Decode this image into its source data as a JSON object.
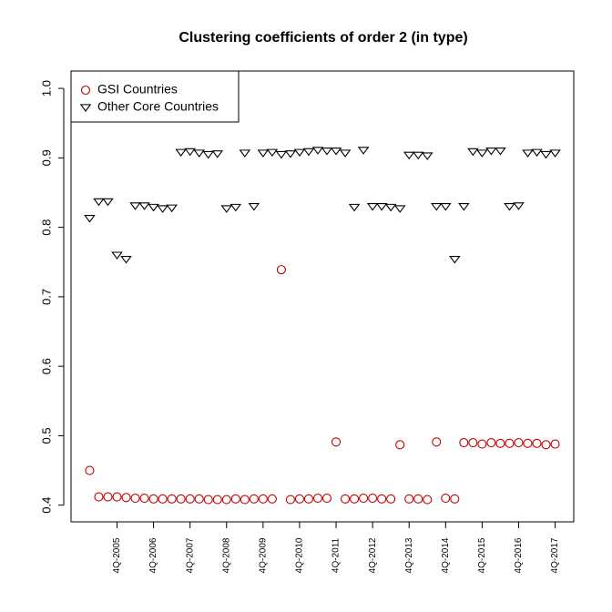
{
  "chart_data": {
    "type": "scatter",
    "title": "Clustering coefficients of order 2 (in type)",
    "categories": [
      null,
      null,
      null,
      "4Q-2005",
      null,
      null,
      null,
      "4Q-2006",
      null,
      null,
      null,
      "4Q-2007",
      null,
      null,
      null,
      "4Q-2008",
      null,
      null,
      null,
      "4Q-2009",
      null,
      null,
      null,
      "4Q-2010",
      null,
      null,
      null,
      "4Q-2011",
      null,
      null,
      null,
      "4Q-2012",
      null,
      null,
      null,
      "4Q-2013",
      null,
      null,
      null,
      "4Q-2014",
      null,
      null,
      null,
      "4Q-2015",
      null,
      null,
      null,
      "4Q-2016",
      null,
      null,
      null,
      "4Q-2017"
    ],
    "series": [
      {
        "name": "GSI Countries",
        "color": "#c00000",
        "marker": "circle",
        "values": [
          0.45,
          0.412,
          0.412,
          0.412,
          0.411,
          0.41,
          0.41,
          0.409,
          0.409,
          0.409,
          0.409,
          0.409,
          0.409,
          0.408,
          0.408,
          0.408,
          0.409,
          0.408,
          0.409,
          0.409,
          0.409,
          0.739,
          0.408,
          0.409,
          0.409,
          0.41,
          0.41,
          0.491,
          0.409,
          0.409,
          0.41,
          0.41,
          0.409,
          0.409,
          0.487,
          0.409,
          0.409,
          0.408,
          0.491,
          0.41,
          0.409,
          0.49,
          0.49,
          0.488,
          0.49,
          0.489,
          0.489,
          0.49,
          0.489,
          0.489,
          0.487,
          0.488
        ]
      },
      {
        "name": "Other Core Countries",
        "color": "#000000",
        "marker": "triangle-down",
        "values": [
          0.813,
          0.837,
          0.837,
          0.76,
          0.754,
          0.831,
          0.831,
          0.829,
          0.827,
          0.828,
          0.908,
          0.909,
          0.907,
          0.905,
          0.906,
          0.827,
          0.829,
          0.907,
          0.83,
          0.907,
          0.908,
          0.905,
          0.906,
          0.908,
          0.909,
          0.911,
          0.91,
          0.91,
          0.907,
          0.829,
          0.911,
          0.83,
          0.83,
          0.829,
          0.827,
          0.904,
          0.904,
          0.903,
          0.83,
          0.83,
          0.754,
          0.83,
          0.909,
          0.907,
          0.91,
          0.91,
          0.83,
          0.831,
          0.907,
          0.908,
          0.905,
          0.907
        ]
      }
    ],
    "ylim": [
      0.376,
      1.025
    ],
    "yticks": [
      0.4,
      0.5,
      0.6,
      0.7,
      0.8,
      0.9,
      {
        "value": 1,
        "label": "1.0"
      }
    ],
    "legend": "top-left"
  }
}
